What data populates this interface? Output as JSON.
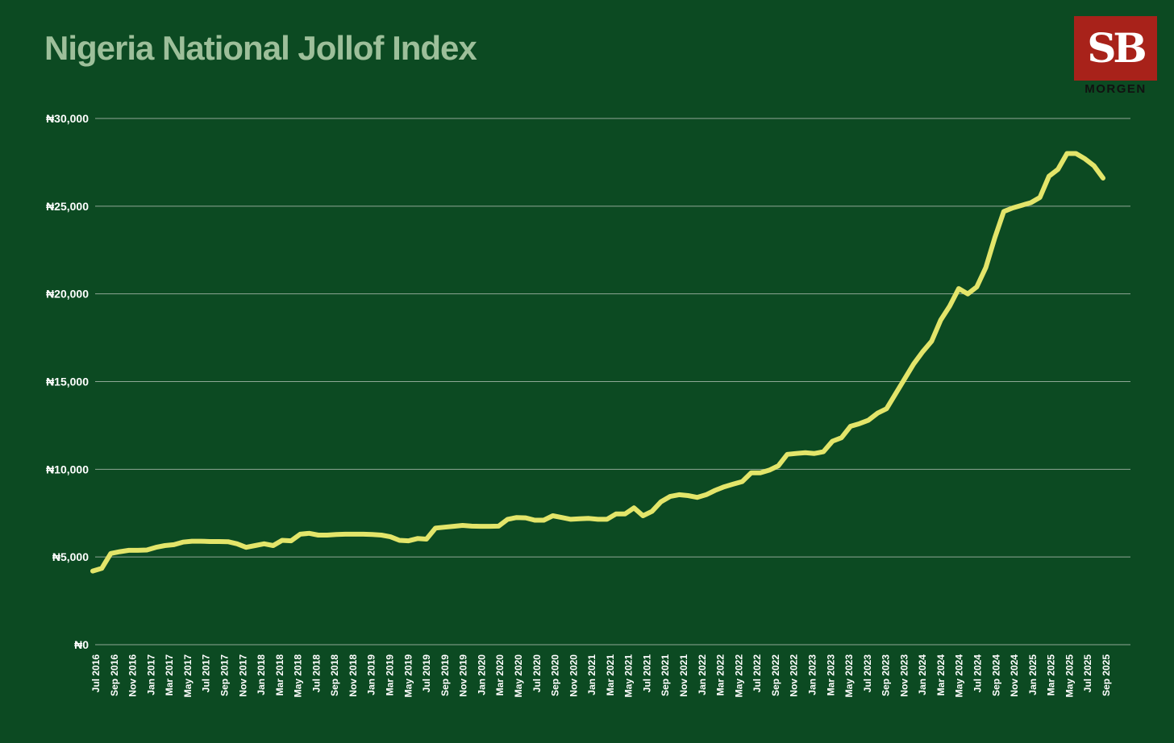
{
  "logo": {
    "mark": "SB",
    "name": "MORGEN",
    "colors": {
      "box": "#a8221a",
      "text": "#111111"
    }
  },
  "colors": {
    "background": "#0c4a22",
    "line": "#e3e56a",
    "grid": "#8fa796",
    "title": "#9dbf9a"
  },
  "chart_data": {
    "type": "line",
    "title": "Nigeria National Jollof Index",
    "xlabel": "",
    "ylabel": "",
    "ylim": [
      0,
      30000
    ],
    "grid": true,
    "yticks": [
      0,
      5000,
      10000,
      15000,
      20000,
      25000,
      30000
    ],
    "ytick_labels": [
      "₦0",
      "₦5,000",
      "₦10,000",
      "₦15,000",
      "₦20,000",
      "₦25,000",
      "₦30,000"
    ],
    "xtick_labels": [
      "Jul 2016",
      "Sep 2016",
      "Nov 2016",
      "Jan 2017",
      "Mar 2017",
      "May 2017",
      "Jul 2017",
      "Sep 2017",
      "Nov 2017",
      "Jan 2018",
      "Mar 2018",
      "May 2018",
      "Jul 2018",
      "Sep 2018",
      "Nov 2018",
      "Jan 2019",
      "Mar 2019",
      "May 2019",
      "Jul 2019",
      "Sep 2019",
      "Nov 2019",
      "Jan 2020",
      "Mar 2020",
      "May 2020",
      "Jul 2020",
      "Sep 2020",
      "Nov 2020",
      "Jan 2021",
      "Mar 2021",
      "May 2021",
      "Jul 2021",
      "Sep 2021",
      "Nov 2021",
      "Jan 2022",
      "Mar 2022",
      "May 2022",
      "Jul 2022",
      "Sep 2022",
      "Nov 2022",
      "Jan 2023",
      "Mar 2023",
      "May 2023",
      "Jul 2023",
      "Sep 2023",
      "Nov 2023",
      "Jan 2024",
      "Mar 2024",
      "May 2024",
      "Jul 2024",
      "Sep 2024",
      "Nov 2024",
      "Jan 2025",
      "Mar 2025",
      "May 2025",
      "Jul 2025",
      "Sep 2025"
    ],
    "series": [
      {
        "name": "Jollof Index",
        "values": [
          4200,
          4350,
          5200,
          5300,
          5380,
          5380,
          5400,
          5550,
          5650,
          5700,
          5850,
          5900,
          5900,
          5880,
          5880,
          5870,
          5750,
          5550,
          5650,
          5750,
          5650,
          5950,
          5920,
          6300,
          6350,
          6250,
          6250,
          6280,
          6300,
          6300,
          6300,
          6280,
          6250,
          6150,
          5950,
          5920,
          6050,
          6020,
          6650,
          6700,
          6750,
          6800,
          6760,
          6750,
          6750,
          6760,
          7150,
          7250,
          7230,
          7100,
          7100,
          7350,
          7250,
          7150,
          7180,
          7200,
          7150,
          7150,
          7450,
          7450,
          7800,
          7350,
          7600,
          8150,
          8450,
          8550,
          8500,
          8400,
          8550,
          8800,
          9000,
          9150,
          9300,
          9800,
          9800,
          9950,
          10200,
          10850,
          10900,
          10950,
          10900,
          11000,
          11600,
          11800,
          12450,
          12600,
          12800,
          13200,
          13450,
          14300,
          15150,
          16000,
          16700,
          17300,
          18500,
          19300,
          20300,
          20000,
          20400,
          21500,
          23200,
          24700,
          24900,
          25050,
          25200,
          25500,
          26700,
          27100,
          28000,
          28000,
          27700,
          27300,
          26600
        ]
      }
    ]
  }
}
